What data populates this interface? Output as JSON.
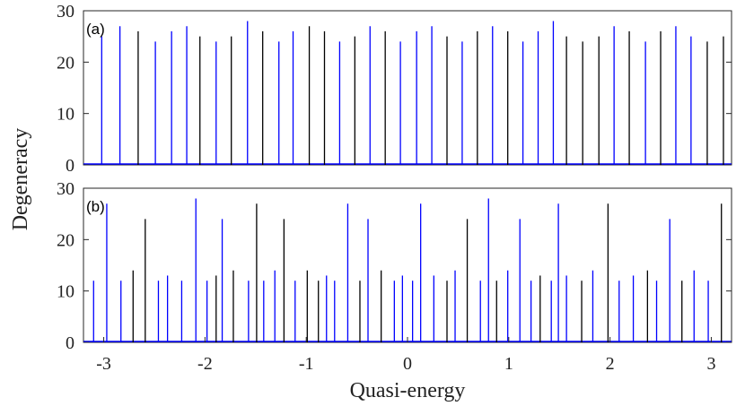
{
  "chart_data": [
    {
      "type": "bar",
      "panel_label": "(a)",
      "ylabel": "Degeneracy",
      "xlabel": "",
      "xlim": [
        -3.2,
        3.2
      ],
      "ylim": [
        0,
        30
      ],
      "yticks": [
        0,
        10,
        20,
        30
      ],
      "xticks": [],
      "grid": false,
      "bar_colors": [
        "#0000ff",
        "#000000"
      ],
      "x": [
        -3.02,
        -2.84,
        -2.66,
        -2.49,
        -2.33,
        -2.18,
        -2.05,
        -1.89,
        -1.74,
        -1.58,
        -1.43,
        -1.27,
        -1.13,
        -0.97,
        -0.82,
        -0.67,
        -0.52,
        -0.37,
        -0.22,
        -0.07,
        0.09,
        0.24,
        0.39,
        0.54,
        0.69,
        0.84,
        0.99,
        1.14,
        1.29,
        1.44,
        1.57,
        1.73,
        1.89,
        2.04,
        2.19,
        2.35,
        2.5,
        2.65,
        2.8,
        2.96,
        3.12
      ],
      "values": [
        25,
        27,
        26,
        24,
        26,
        27,
        25,
        24,
        25,
        28,
        26,
        24,
        26,
        27,
        26,
        24,
        25,
        27,
        26,
        24,
        26,
        27,
        25,
        24,
        26,
        27,
        26,
        24,
        26,
        28,
        25,
        24,
        25,
        27,
        26,
        24,
        26,
        27,
        25,
        24,
        25
      ],
      "colors": [
        "b",
        "b",
        "k",
        "b",
        "b",
        "b",
        "k",
        "b",
        "k",
        "b",
        "k",
        "b",
        "b",
        "k",
        "k",
        "b",
        "k",
        "b",
        "k",
        "b",
        "b",
        "b",
        "k",
        "b",
        "k",
        "b",
        "k",
        "b",
        "b",
        "b",
        "k",
        "k",
        "k",
        "b",
        "k",
        "b",
        "k",
        "b",
        "b",
        "k",
        "k"
      ]
    },
    {
      "type": "bar",
      "panel_label": "(b)",
      "ylabel": "Degeneracy",
      "xlabel": "Quasi-energy",
      "xlim": [
        -3.2,
        3.2
      ],
      "ylim": [
        0,
        30
      ],
      "yticks": [
        0,
        10,
        20,
        30
      ],
      "xticks": [
        -3,
        -2,
        -1,
        0,
        1,
        2,
        3
      ],
      "grid": false,
      "bar_colors": [
        "#0000ff",
        "#000000"
      ],
      "x": [
        -3.1,
        -2.97,
        -2.83,
        -2.71,
        -2.59,
        -2.46,
        -2.37,
        -2.23,
        -2.09,
        -1.98,
        -1.89,
        -1.83,
        -1.72,
        -1.57,
        -1.49,
        -1.42,
        -1.31,
        -1.22,
        -1.11,
        -0.99,
        -0.88,
        -0.8,
        -0.72,
        -0.59,
        -0.47,
        -0.39,
        -0.26,
        -0.13,
        -0.05,
        0.05,
        0.13,
        0.26,
        0.39,
        0.47,
        0.59,
        0.72,
        0.8,
        0.88,
        0.99,
        1.11,
        1.22,
        1.31,
        1.42,
        1.49,
        1.57,
        1.72,
        1.83,
        1.98,
        2.09,
        2.23,
        2.37,
        2.46,
        2.59,
        2.71,
        2.83,
        2.97,
        3.1
      ],
      "values": [
        12,
        27,
        12,
        14,
        24,
        12,
        13,
        12,
        28,
        12,
        13,
        24,
        14,
        12,
        27,
        12,
        14,
        24,
        12,
        14,
        12,
        13,
        12,
        27,
        12,
        24,
        14,
        12,
        13,
        12,
        27,
        13,
        12,
        14,
        24,
        12,
        28,
        12,
        14,
        24,
        12,
        13,
        12,
        27,
        13,
        12,
        14,
        27,
        12,
        13,
        14,
        12,
        24,
        12,
        14,
        12,
        27
      ],
      "colors": [
        "b",
        "b",
        "b",
        "k",
        "k",
        "b",
        "b",
        "b",
        "b",
        "b",
        "k",
        "b",
        "k",
        "b",
        "k",
        "b",
        "b",
        "k",
        "b",
        "k",
        "k",
        "b",
        "b",
        "b",
        "k",
        "b",
        "k",
        "b",
        "b",
        "b",
        "b",
        "b",
        "k",
        "b",
        "k",
        "b",
        "b",
        "k",
        "b",
        "b",
        "b",
        "k",
        "b",
        "b",
        "b",
        "k",
        "b",
        "k",
        "b",
        "b",
        "k",
        "b",
        "b",
        "k",
        "b",
        "b",
        "k"
      ]
    }
  ]
}
